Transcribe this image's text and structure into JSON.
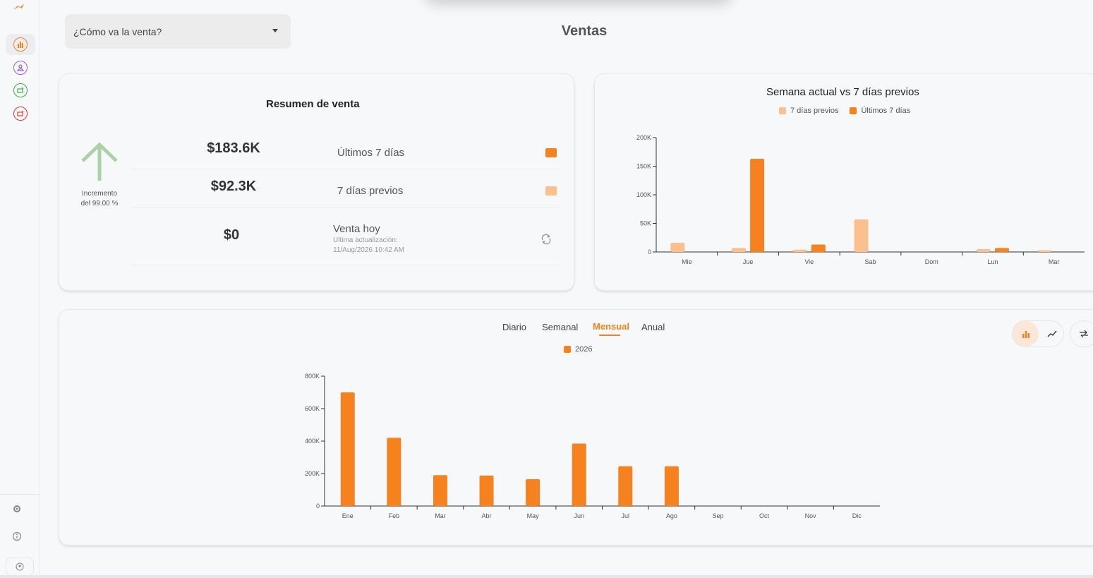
{
  "colors": {
    "accent": "#f5821f",
    "accent_light": "#fcc08f",
    "arrow_green": "#a9d3a6"
  },
  "sidebar": {
    "items": [
      {
        "icon": "bar-chart-icon",
        "color": "#f5821f"
      },
      {
        "icon": "people-icon",
        "color": "#9b5de5"
      },
      {
        "icon": "money-in-icon",
        "color": "#3cb043"
      },
      {
        "icon": "money-out-icon",
        "color": "#e53935"
      }
    ],
    "bottom": [
      "gear-icon",
      "info-icon",
      "user-icon"
    ]
  },
  "header": {
    "dropdown_value": "¿Cómo va la venta?",
    "title": "Ventas"
  },
  "resumen": {
    "title": "Resumen de venta",
    "increment_label_1": "Incremento",
    "increment_label_2": "del 99.00 %",
    "rows": [
      {
        "amount": "$183.6K",
        "label": "Últimos 7 días"
      },
      {
        "amount": "$92.3K",
        "label": "7 días previos"
      },
      {
        "amount": "$0",
        "label": "Venta hoy"
      }
    ],
    "update_label": "Ultima actualización:",
    "update_time": "11/Aug/2026 10:42 AM"
  },
  "semana": {
    "title": "Semana actual vs 7 días previos",
    "legend_prev": "7 días previos",
    "legend_last": "Últimos 7 días"
  },
  "monthly": {
    "tabs": [
      "Diario",
      "Semanal",
      "Mensual",
      "Anual"
    ],
    "active_tab": "Mensual",
    "legend": "2026"
  },
  "chart_data": [
    {
      "type": "bar",
      "title": "Semana actual vs 7 días previos",
      "categories": [
        "Mie",
        "Jue",
        "Vie",
        "Sab",
        "Dom",
        "Lun",
        "Mar"
      ],
      "series": [
        {
          "name": "7 días previos",
          "values": [
            16000,
            7000,
            4000,
            57000,
            0,
            5000,
            3000
          ]
        },
        {
          "name": "Últimos 7 días",
          "values": [
            0,
            163000,
            13000,
            0,
            0,
            7000,
            0
          ]
        }
      ],
      "ylim": [
        0,
        200000
      ],
      "yticks": [
        "0",
        "50K",
        "100K",
        "150K",
        "200K"
      ],
      "legend": "top"
    },
    {
      "type": "bar",
      "categories": [
        "Ene",
        "Feb",
        "Mar",
        "Abr",
        "May",
        "Jun",
        "Jul",
        "Ago",
        "Sep",
        "Oct",
        "Nov",
        "Dic"
      ],
      "series": [
        {
          "name": "2026",
          "values": [
            700000,
            420000,
            190000,
            188000,
            165000,
            385000,
            245000,
            245000,
            0,
            0,
            0,
            0
          ]
        }
      ],
      "ylim": [
        0,
        800000
      ],
      "yticks": [
        "0",
        "200K",
        "400K",
        "600K",
        "800K"
      ],
      "legend": "top"
    }
  ]
}
